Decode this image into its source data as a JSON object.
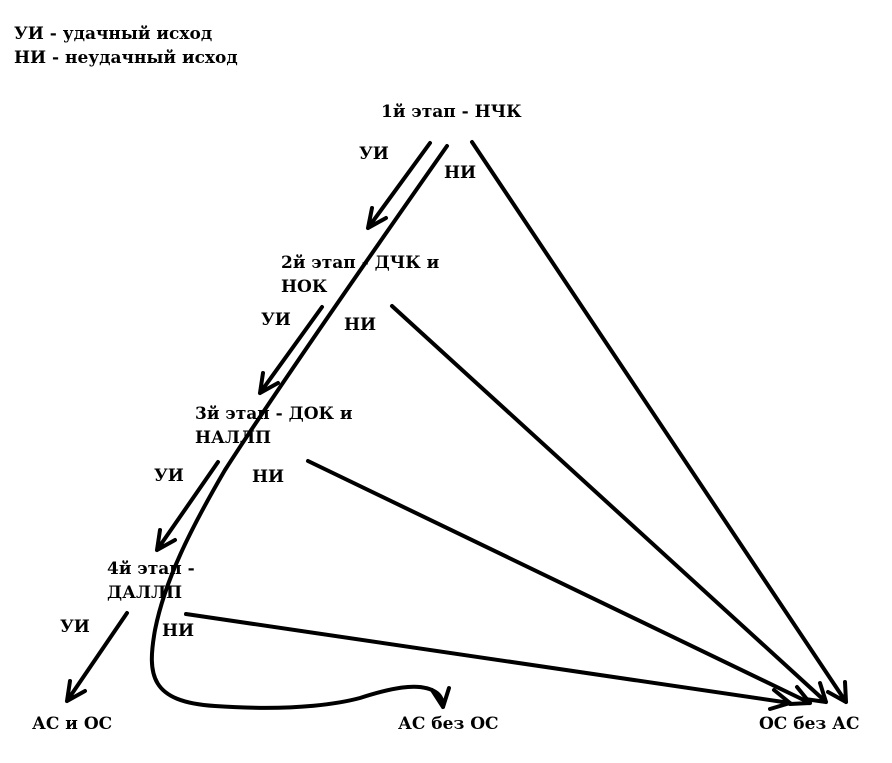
{
  "legend": {
    "line1": "УИ - удачный исход",
    "line2": "НИ - неудачный исход"
  },
  "stages": [
    {
      "line1": "1й этап - НЧК",
      "line2": ""
    },
    {
      "line1": "2й этап - ДЧК и",
      "line2": "НОК"
    },
    {
      "line1": "3й этап - ДОК и",
      "line2": "НАЛЛП"
    },
    {
      "line1": "4й этап -",
      "line2": "ДАЛЛП"
    }
  ],
  "edge_labels": {
    "success": "УИ",
    "failure": "НИ"
  },
  "outcomes": {
    "as_and_os": "АС и ОС",
    "as_without_os": "АС без ОС",
    "os_without_as": "ОС без АС"
  }
}
